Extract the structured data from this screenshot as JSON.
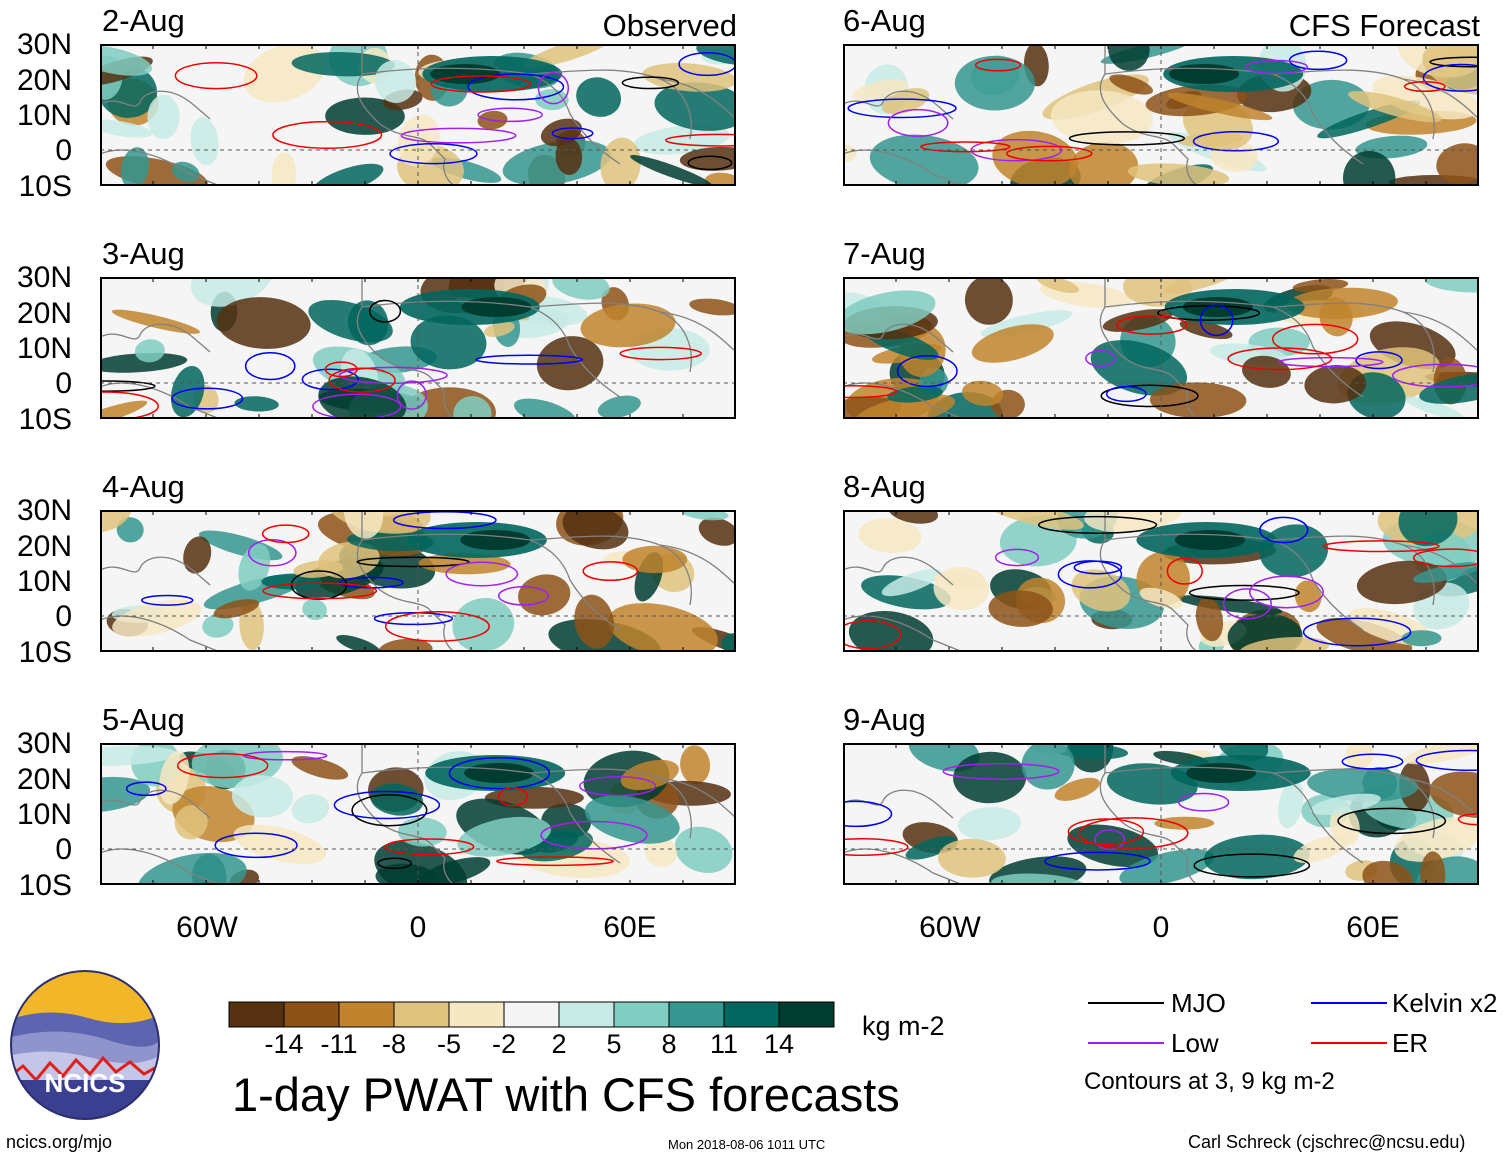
{
  "header": {
    "left_title": "Observed",
    "right_title": "CFS Forecast"
  },
  "panels_left": [
    {
      "date": "2-Aug"
    },
    {
      "date": "3-Aug"
    },
    {
      "date": "4-Aug"
    },
    {
      "date": "5-Aug"
    }
  ],
  "panels_right": [
    {
      "date": "6-Aug"
    },
    {
      "date": "7-Aug"
    },
    {
      "date": "8-Aug"
    },
    {
      "date": "9-Aug"
    }
  ],
  "y_axis": [
    "30N",
    "20N",
    "10N",
    "0",
    "10S"
  ],
  "x_axis": [
    "60W",
    "0",
    "60E"
  ],
  "colorbar": {
    "colors": [
      "#553011",
      "#8d5217",
      "#bf842d",
      "#dfc27d",
      "#f6e8c3",
      "#f5f5f5",
      "#c7eae5",
      "#80cdc1",
      "#35978f",
      "#01665e",
      "#003c30"
    ],
    "labels": [
      "-14",
      "-11",
      "-8",
      "-5",
      "-2",
      "2",
      "5",
      "8",
      "11",
      "14"
    ],
    "unit": "kg m-2"
  },
  "title": "1-day PWAT with CFS forecasts",
  "legend": {
    "items": [
      {
        "label": "MJO",
        "color": "#000000"
      },
      {
        "label": "Kelvin x2",
        "color": "#0000ee"
      },
      {
        "label": "Low",
        "color": "#a020f0"
      },
      {
        "label": "ER",
        "color": "#ee0000"
      }
    ],
    "note": "Contours at 3, 9 kg m-2"
  },
  "logo": {
    "text": "NCICS"
  },
  "footer": {
    "left": "ncics.org/mjo",
    "center": "Mon 2018-08-06 1011 UTC",
    "right": "Carl Schreck (cjschrec@ncsu.edu)"
  }
}
